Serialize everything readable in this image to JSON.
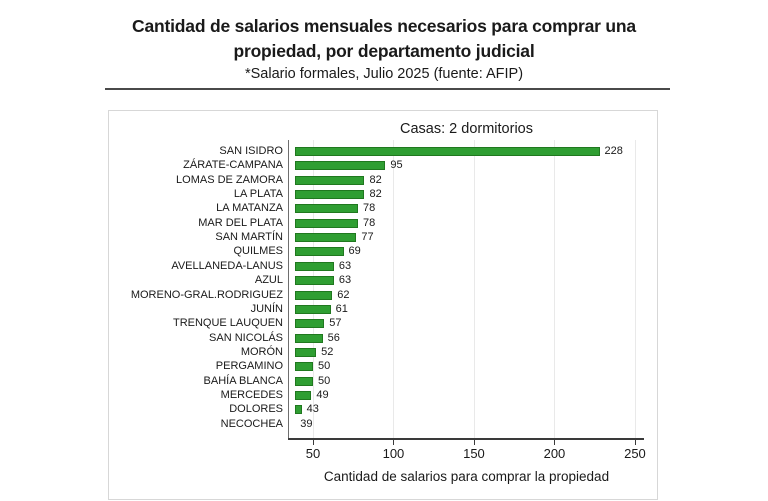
{
  "header": {
    "title_line1": "Cantidad de salarios mensuales necesarios para comprar una",
    "title_line2": "propiedad, por departamento judicial",
    "subtitle": "*Salario formales, Julio 2025 (fuente: AFIP)"
  },
  "chart_data": {
    "type": "bar",
    "orientation": "horizontal",
    "title": "Casas: 2 dormitorios",
    "xlabel": "Cantidad de salarios para comprar la propiedad",
    "categories": [
      "SAN ISIDRO",
      "ZÁRATE-CAMPANA",
      "LOMAS DE ZAMORA",
      "LA PLATA",
      "LA MATANZA",
      "MAR DEL PLATA",
      "SAN MARTÍN",
      "QUILMES",
      "AVELLANEDA-LANUS",
      "AZUL",
      "MORENO-GRAL.RODRIGUEZ",
      "JUNÍN",
      "TRENQUE LAUQUEN",
      "SAN NICOLÁS",
      "MORÓN",
      "PERGAMINO",
      "BAHÍA BLANCA",
      "MERCEDES",
      "DOLORES",
      "NECOCHEA"
    ],
    "values": [
      228,
      95,
      82,
      82,
      78,
      78,
      77,
      69,
      63,
      63,
      62,
      61,
      57,
      56,
      52,
      50,
      50,
      49,
      43,
      39
    ],
    "x_ticks": [
      50,
      100,
      150,
      200,
      250
    ],
    "xlim": [
      34.5,
      256
    ],
    "bar_base": 39,
    "grid": true,
    "legend": null,
    "colors": {
      "bar_fill": "#2f9e32",
      "bar_edge": "#20781f",
      "grid": "#e9e9e9",
      "axis": "#3a3a3a",
      "spine": "#6e6e6e",
      "text": "#1a1a1a"
    }
  }
}
